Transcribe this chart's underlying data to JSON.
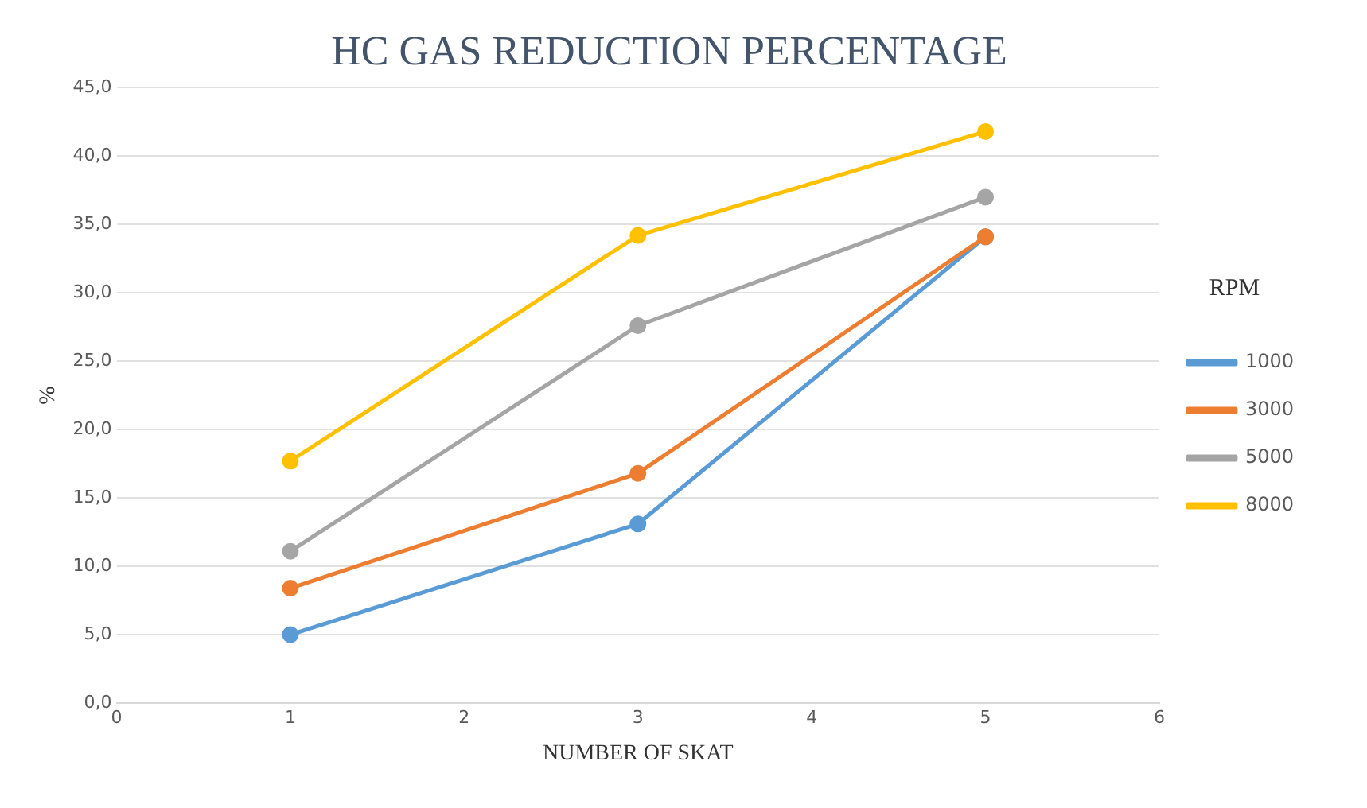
{
  "chart_data": {
    "type": "line",
    "title": "HC GAS REDUCTION PERCENTAGE",
    "xlabel": "NUMBER OF SKAT",
    "ylabel": "%",
    "legend_title": "RPM",
    "x": [
      1,
      3,
      5
    ],
    "series": [
      {
        "name": "1000",
        "color": "#5b9bd5",
        "values": [
          5.0,
          13.1,
          34.1
        ]
      },
      {
        "name": "3000",
        "color": "#ed7d31",
        "values": [
          8.4,
          16.8,
          34.1
        ]
      },
      {
        "name": "5000",
        "color": "#a5a5a5",
        "values": [
          11.1,
          27.6,
          37.0
        ]
      },
      {
        "name": "8000",
        "color": "#ffc000",
        "values": [
          17.7,
          34.2,
          41.8
        ]
      }
    ],
    "xlim": [
      0,
      6
    ],
    "xticks": [
      0,
      1,
      2,
      3,
      4,
      5,
      6
    ],
    "ylim": [
      0,
      45
    ],
    "yticks": [
      {
        "value": 0,
        "label": "0,0"
      },
      {
        "value": 5,
        "label": "5,0"
      },
      {
        "value": 10,
        "label": "10,0"
      },
      {
        "value": 15,
        "label": "15,0"
      },
      {
        "value": 20,
        "label": "20,0"
      },
      {
        "value": 25,
        "label": "25,0"
      },
      {
        "value": 30,
        "label": "30,0"
      },
      {
        "value": 35,
        "label": "35,0"
      },
      {
        "value": 40,
        "label": "40,0"
      },
      {
        "value": 45,
        "label": "45,0"
      }
    ],
    "grid": "y",
    "legend": "right",
    "marker": "circle",
    "line_style": "solid"
  }
}
